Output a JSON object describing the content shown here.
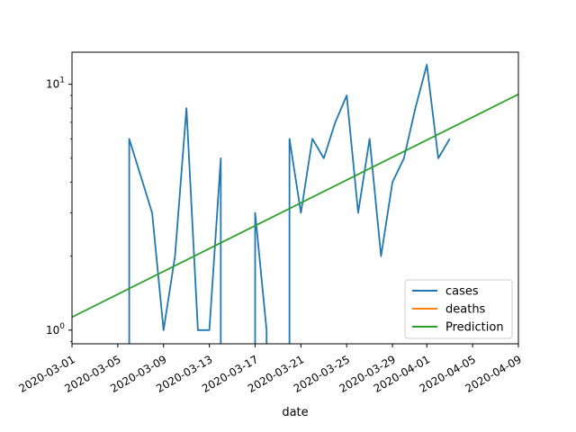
{
  "chart_data": {
    "type": "line",
    "title": "",
    "xlabel": "date",
    "ylabel": "",
    "yscale": "log",
    "xlim": [
      "2020-03-01",
      "2020-04-09"
    ],
    "ylim": [
      0.88,
      13.5
    ],
    "x_ticks": [
      "2020-03-01",
      "2020-03-05",
      "2020-03-09",
      "2020-03-13",
      "2020-03-17",
      "2020-03-21",
      "2020-03-25",
      "2020-03-29",
      "2020-04-01",
      "2020-04-05",
      "2020-04-09"
    ],
    "y_tick_labels": [
      {
        "value": 1,
        "base": "10",
        "exp": "0"
      },
      {
        "value": 10,
        "base": "10",
        "exp": "1"
      }
    ],
    "grid": false,
    "legend_position": "lower-right",
    "series": [
      {
        "name": "cases",
        "color": "#1f77b4",
        "points": [
          [
            "2020-03-06",
            0.5
          ],
          [
            "2020-03-06",
            6
          ],
          [
            "2020-03-08",
            3
          ],
          [
            "2020-03-09",
            1
          ],
          [
            "2020-03-10",
            2
          ],
          [
            "2020-03-11",
            8
          ],
          [
            "2020-03-12",
            1
          ],
          [
            "2020-03-13",
            1
          ],
          [
            "2020-03-14",
            5
          ],
          [
            "2020-03-14",
            0.5
          ],
          [
            "2020-03-17",
            0.5
          ],
          [
            "2020-03-17",
            3
          ],
          [
            "2020-03-18",
            1
          ],
          [
            "2020-03-18",
            0.5
          ],
          [
            "2020-03-20",
            0.5
          ],
          [
            "2020-03-20",
            6
          ],
          [
            "2020-03-21",
            3
          ],
          [
            "2020-03-22",
            6
          ],
          [
            "2020-03-23",
            5
          ],
          [
            "2020-03-24",
            7
          ],
          [
            "2020-03-25",
            9
          ],
          [
            "2020-03-26",
            3
          ],
          [
            "2020-03-27",
            6
          ],
          [
            "2020-03-28",
            2
          ],
          [
            "2020-03-29",
            4
          ],
          [
            "2020-03-30",
            5
          ],
          [
            "2020-03-31",
            8
          ],
          [
            "2020-04-01",
            12
          ],
          [
            "2020-04-02",
            5
          ],
          [
            "2020-04-03",
            6
          ]
        ]
      },
      {
        "name": "deaths",
        "color": "#ff7f0e",
        "points": []
      },
      {
        "name": "Prediction",
        "color": "#2ca02c",
        "points": [
          [
            "2020-03-01",
            1.13
          ],
          [
            "2020-04-09",
            9.1
          ]
        ]
      }
    ]
  }
}
